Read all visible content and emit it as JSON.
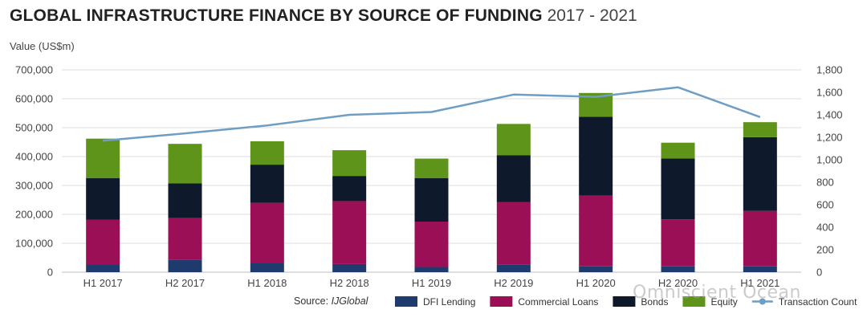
{
  "title_bold": "GLOBAL INFRASTRUCTURE FINANCE BY SOURCE OF FUNDING",
  "title_years": "2017 - 2021",
  "source_label": "Source:",
  "source_name": "IJGlobal",
  "watermark": "Omniscient Ocean",
  "chart_data": {
    "type": "bar",
    "stacked": true,
    "ylabel": "Value (US$m)",
    "categories": [
      "H1 2017",
      "H2 2017",
      "H1 2018",
      "H2 2018",
      "H1 2019",
      "H2 2019",
      "H1 2020",
      "H2 2020",
      "H1 2021"
    ],
    "ylim": [
      0,
      700000
    ],
    "y_ticks": [
      "0",
      "100,000",
      "200,000",
      "300,000",
      "400,000",
      "500,000",
      "600,000",
      "700,000"
    ],
    "y2lim": [
      0,
      1800
    ],
    "y2_ticks": [
      "0",
      "200",
      "400",
      "600",
      "800",
      "1,000",
      "1,200",
      "1,400",
      "1,600",
      "1,800"
    ],
    "series": [
      {
        "name": "DFI Lending",
        "color": "#1f3b6e",
        "values": [
          25000,
          42000,
          32000,
          28000,
          18000,
          26000,
          20000,
          20000,
          20000
        ]
      },
      {
        "name": "Commercial Loans",
        "color": "#9b0f57",
        "values": [
          157000,
          145000,
          208000,
          218000,
          157000,
          216000,
          245000,
          163000,
          192000
        ]
      },
      {
        "name": "Bonds",
        "color": "#0e1a2b",
        "values": [
          143000,
          120000,
          132000,
          87000,
          150000,
          163000,
          273000,
          210000,
          255000
        ]
      },
      {
        "name": "Equity",
        "color": "#5e9419",
        "values": [
          137000,
          137000,
          81000,
          89000,
          68000,
          108000,
          82000,
          55000,
          52000
        ]
      }
    ],
    "line_series": {
      "name": "Transaction Count",
      "color": "#6f9ec4",
      "axis": "right",
      "values": [
        1170,
        1235,
        1305,
        1400,
        1425,
        1580,
        1560,
        1645,
        1380
      ]
    },
    "grid": true,
    "legend_position": "bottom-right"
  }
}
